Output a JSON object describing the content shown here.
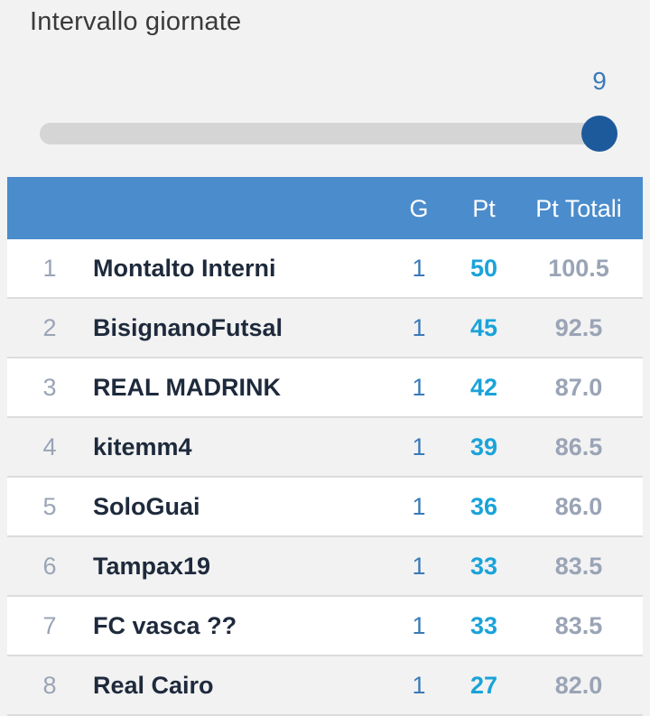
{
  "filter": {
    "title": "Intervallo giornate",
    "slider_value": "9",
    "slider_fraction": 1.0
  },
  "table": {
    "headers": {
      "rank": "",
      "team": "",
      "g": "G",
      "pt": "Pt",
      "pt_totali": "Pt Totali"
    },
    "rows": [
      {
        "rank": "1",
        "team": "Montalto Interni",
        "g": "1",
        "pt": "50",
        "pt_totali": "100.5"
      },
      {
        "rank": "2",
        "team": "BisignanoFutsal",
        "g": "1",
        "pt": "45",
        "pt_totali": "92.5"
      },
      {
        "rank": "3",
        "team": "REAL MADRINK",
        "g": "1",
        "pt": "42",
        "pt_totali": "87.0"
      },
      {
        "rank": "4",
        "team": "kitemm4",
        "g": "1",
        "pt": "39",
        "pt_totali": "86.5"
      },
      {
        "rank": "5",
        "team": "SoloGuai",
        "g": "1",
        "pt": "36",
        "pt_totali": "86.0"
      },
      {
        "rank": "6",
        "team": "Tampax19",
        "g": "1",
        "pt": "33",
        "pt_totali": "83.5"
      },
      {
        "rank": "7",
        "team": "FC vasca ??",
        "g": "1",
        "pt": "33",
        "pt_totali": "83.5"
      },
      {
        "rank": "8",
        "team": "Real Cairo",
        "g": "1",
        "pt": "27",
        "pt_totali": "82.0"
      }
    ]
  },
  "colors": {
    "header_bg": "#4a8ccc",
    "slider_thumb": "#1d5a9c",
    "points": "#1aa3d9"
  }
}
